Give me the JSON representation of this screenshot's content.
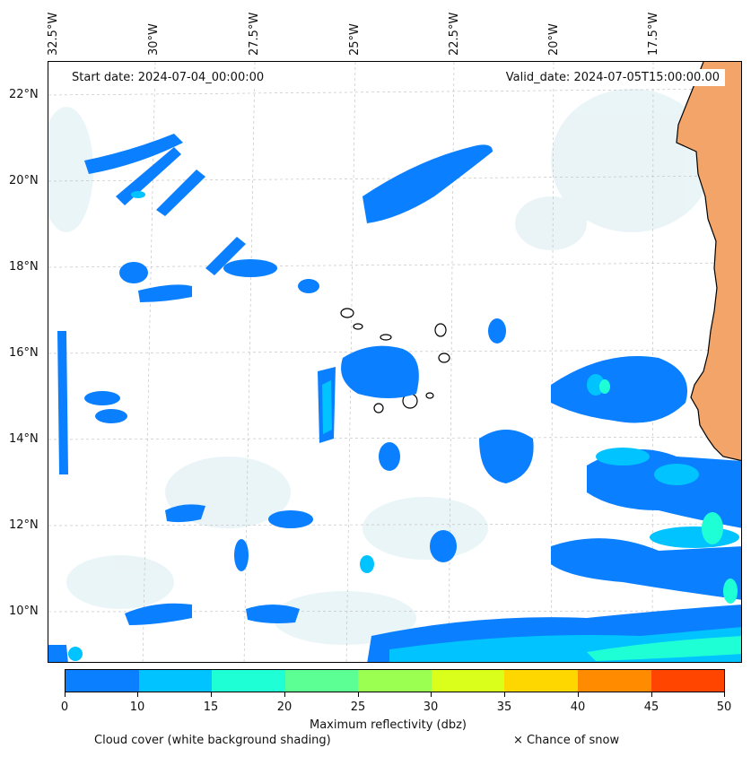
{
  "header": {
    "start_date": "Start date: 2024-07-04_00:00:00",
    "valid_date": "Valid_date: 2024-07-05T15:00:00.00"
  },
  "axes": {
    "longitude_labels": [
      "32.5°W",
      "30°W",
      "27.5°W",
      "25°W",
      "22.5°W",
      "20°W",
      "17.5°W"
    ],
    "latitude_labels": [
      "22°N",
      "20°N",
      "18°N",
      "16°N",
      "14°N",
      "12°N",
      "10°N"
    ],
    "gridlines": true
  },
  "colorbar": {
    "label": "Maximum reflectivity (dbz)",
    "ticks": [
      "0",
      "10",
      "15",
      "20",
      "25",
      "30",
      "35",
      "40",
      "45",
      "50"
    ],
    "colors": [
      "#0a7fff",
      "#00c3ff",
      "#1fffd6",
      "#5cff93",
      "#9bff52",
      "#d9ff1a",
      "#ffd700",
      "#ff8c00",
      "#ff4500"
    ]
  },
  "legend": {
    "cloud_cover": "Cloud cover (white background shading)",
    "snow": "× Chance of snow"
  },
  "colors": {
    "land": "#f2a469",
    "coast": "#000000",
    "cloud_tint": "#d9ecf2"
  }
}
